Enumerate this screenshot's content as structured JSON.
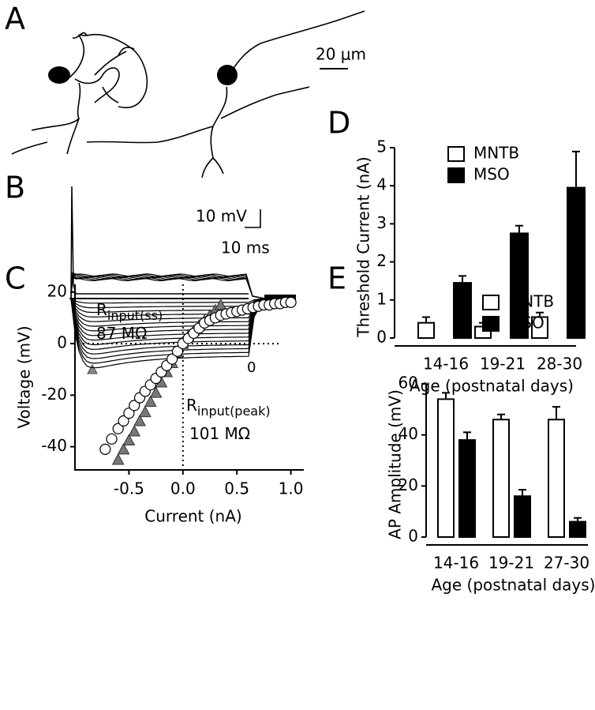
{
  "panel_a": {
    "label": "A",
    "scale_bar": "20 μm"
  },
  "panel_b": {
    "label": "B",
    "scale_voltage": "10 mV",
    "scale_time": "10 ms",
    "marker_label": "0"
  },
  "chart_data": [
    {
      "type": "scatter",
      "panel": "C",
      "xlabel": "Current (nA)",
      "ylabel": "Voltage (mV)",
      "xlim": [
        -1.0,
        1.12
      ],
      "ylim": [
        -49,
        23
      ],
      "xticks": [
        -0.5,
        {
          "value": 0,
          "label": "0.0"
        },
        0.5,
        {
          "value": 1,
          "label": "1.0"
        }
      ],
      "yticks": [
        -40,
        -20,
        0,
        20
      ],
      "zero_lines": true,
      "annotations": [
        {
          "text": "R",
          "sub": "input(ss)"
        },
        {
          "text": "87 MΩ"
        },
        {
          "text": "R",
          "sub": "input(peak)"
        },
        {
          "text": "101 MΩ"
        }
      ],
      "series": [
        {
          "marker": "triangle",
          "color": "#777777",
          "x": [
            -0.6,
            -0.55,
            -0.5,
            -0.45,
            -0.4,
            -0.35,
            -0.3,
            -0.25,
            -0.2,
            -0.15,
            -0.1,
            -0.05,
            0,
            0.05,
            0.1,
            0.15,
            0.2,
            0.25,
            0.3,
            0.35
          ],
          "values": [
            -45,
            -41,
            -37.5,
            -34,
            -30,
            -26.5,
            -22.5,
            -19,
            -15,
            -11,
            -7.5,
            -3.5,
            0,
            3,
            5,
            7,
            9,
            11,
            13,
            15
          ]
        },
        {
          "marker": "circle",
          "color": "#ffffff",
          "x": [
            -0.72,
            -0.66,
            -0.6,
            -0.55,
            -0.5,
            -0.45,
            -0.4,
            -0.35,
            -0.3,
            -0.25,
            -0.2,
            -0.15,
            -0.1,
            -0.05,
            0,
            0.05,
            0.1,
            0.15,
            0.2,
            0.25,
            0.3,
            0.35,
            0.4,
            0.45,
            0.5,
            0.55,
            0.6,
            0.65,
            0.7,
            0.75,
            0.8,
            0.85,
            0.9,
            0.95,
            1.0
          ],
          "values": [
            -41,
            -37,
            -33,
            -30,
            -27,
            -24,
            -21,
            -18.5,
            -16,
            -13.5,
            -11,
            -8.5,
            -6,
            -3,
            0,
            2,
            4,
            6,
            8,
            9,
            10,
            11,
            11.5,
            12,
            12.5,
            13,
            13.5,
            14,
            14.5,
            15,
            15,
            15.5,
            15.5,
            16,
            16
          ]
        }
      ]
    },
    {
      "type": "bar",
      "panel": "D",
      "ylabel": "Threshold Current (nA)",
      "xlabel": "Age (postnatal days)",
      "categories": [
        "14-16",
        "19-21",
        "28-30"
      ],
      "ylim": [
        0,
        5
      ],
      "yticks": [
        0,
        1,
        2,
        3,
        4,
        5
      ],
      "legend": "upper left",
      "series": [
        {
          "name": "MNTB",
          "color": "#ffffff",
          "values": [
            0.4,
            0.3,
            0.55
          ],
          "errors": [
            0.15,
            0.1,
            0.12
          ]
        },
        {
          "name": "MSO",
          "color": "#000000",
          "values": [
            1.45,
            2.75,
            3.95
          ],
          "errors": [
            0.18,
            0.2,
            0.95
          ]
        }
      ]
    },
    {
      "type": "bar",
      "panel": "E",
      "ylabel": "AP Amplitude (mV)",
      "xlabel": "Age (postnatal days)",
      "categories": [
        "14-16",
        "19-21",
        "27-30"
      ],
      "ylim": [
        0,
        60
      ],
      "yticks": [
        0,
        20,
        40,
        60
      ],
      "legend": "upper right",
      "series": [
        {
          "name": "MNTB",
          "color": "#ffffff",
          "values": [
            54,
            46,
            46
          ],
          "errors": [
            2.5,
            2,
            5
          ]
        },
        {
          "name": "MSO",
          "color": "#000000",
          "values": [
            38,
            16,
            6
          ],
          "errors": [
            3,
            2.5,
            1.5
          ]
        }
      ]
    }
  ]
}
